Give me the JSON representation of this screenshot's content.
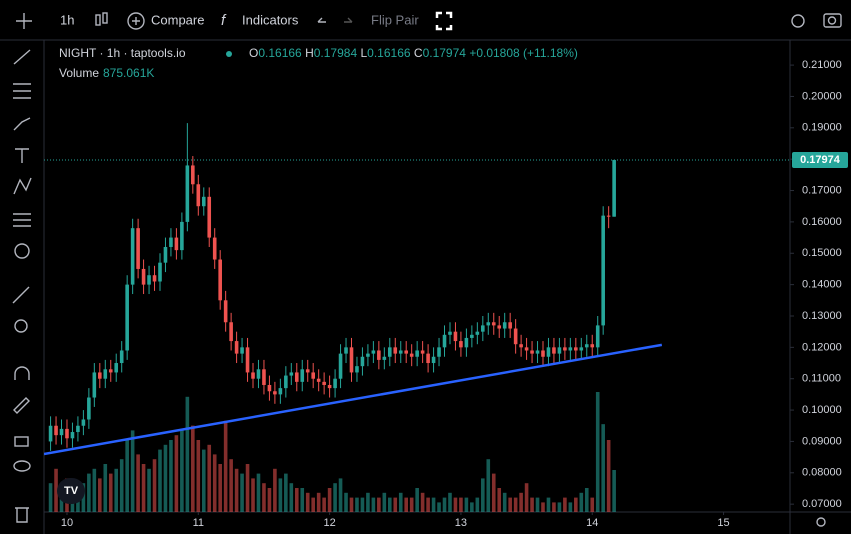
{
  "toolbar": {
    "interval": "1h",
    "compare": "Compare",
    "indicators": "Indicators",
    "flip": "Flip Pair"
  },
  "chart_data": {
    "type": "candlestick",
    "title": "NIGHT · 1h · taptools.io",
    "readout": [
      {
        "label": "O",
        "value": 0.16166
      },
      {
        "label": "H",
        "value": 0.17984
      },
      {
        "label": "L",
        "value": 0.16166
      },
      {
        "label": "C",
        "value": 0.17974
      }
    ],
    "change": {
      "value": 0.01808,
      "label": "+0.01808"
    },
    "change_pct": {
      "value": 11.18,
      "label": "(+11.18%)"
    },
    "volume_title": "Volume",
    "volume_readout": {
      "value": 875.061,
      "label": "875.061K"
    },
    "up_color": "#26a69a",
    "down_color": "#ef5350",
    "x": [
      9.875,
      9.9167,
      9.9583,
      10,
      10.0417,
      10.0833,
      10.125,
      10.1667,
      10.2083,
      10.25,
      10.2917,
      10.3333,
      10.375,
      10.4167,
      10.4583,
      10.5,
      10.5417,
      10.5833,
      10.625,
      10.6667,
      10.7083,
      10.75,
      10.7917,
      10.8333,
      10.875,
      10.9167,
      10.9583,
      11,
      11.0417,
      11.0833,
      11.125,
      11.1667,
      11.2083,
      11.25,
      11.2917,
      11.3333,
      11.375,
      11.4167,
      11.4583,
      11.5,
      11.5417,
      11.5833,
      11.625,
      11.6667,
      11.7083,
      11.75,
      11.7917,
      11.8333,
      11.875,
      11.9167,
      11.9583,
      12,
      12.0417,
      12.0833,
      12.125,
      12.1667,
      12.2083,
      12.25,
      12.2917,
      12.3333,
      12.375,
      12.4167,
      12.4583,
      12.5,
      12.5417,
      12.5833,
      12.625,
      12.6667,
      12.7083,
      12.75,
      12.7917,
      12.8333,
      12.875,
      12.9167,
      12.9583,
      13,
      13.0417,
      13.0833,
      13.125,
      13.1667,
      13.2083,
      13.25,
      13.2917,
      13.3333,
      13.375,
      13.4167,
      13.4583,
      13.5,
      13.5417,
      13.5833,
      13.625,
      13.6667,
      13.7083,
      13.75,
      13.7917,
      13.8333,
      13.875,
      13.9167,
      13.9583,
      14,
      14.0417,
      14.0833,
      14.125,
      14.1667
    ],
    "open": [
      0.09,
      0.095,
      0.092,
      0.094,
      0.091,
      0.093,
      0.095,
      0.097,
      0.104,
      0.112,
      0.11,
      0.113,
      0.112,
      0.115,
      0.119,
      0.14,
      0.158,
      0.145,
      0.14,
      0.143,
      0.141,
      0.147,
      0.152,
      0.155,
      0.151,
      0.16,
      0.178,
      0.172,
      0.165,
      0.168,
      0.155,
      0.148,
      0.135,
      0.128,
      0.122,
      0.118,
      0.12,
      0.112,
      0.11,
      0.113,
      0.108,
      0.106,
      0.105,
      0.107,
      0.111,
      0.112,
      0.109,
      0.113,
      0.112,
      0.11,
      0.109,
      0.108,
      0.107,
      0.11,
      0.118,
      0.12,
      0.112,
      0.114,
      0.117,
      0.118,
      0.119,
      0.116,
      0.117,
      0.12,
      0.118,
      0.119,
      0.118,
      0.117,
      0.119,
      0.118,
      0.115,
      0.117,
      0.12,
      0.124,
      0.125,
      0.122,
      0.12,
      0.123,
      0.124,
      0.125,
      0.127,
      0.128,
      0.127,
      0.126,
      0.128,
      0.126,
      0.121,
      0.12,
      0.119,
      0.118,
      0.119,
      0.117,
      0.12,
      0.118,
      0.12,
      0.119,
      0.12,
      0.119,
      0.12,
      0.121,
      0.12,
      0.127,
      0.162,
      0.16166
    ],
    "high": [
      0.098,
      0.098,
      0.097,
      0.097,
      0.096,
      0.098,
      0.1,
      0.107,
      0.115,
      0.115,
      0.116,
      0.116,
      0.118,
      0.122,
      0.143,
      0.161,
      0.161,
      0.148,
      0.146,
      0.146,
      0.15,
      0.155,
      0.158,
      0.158,
      0.163,
      0.1915,
      0.181,
      0.175,
      0.171,
      0.171,
      0.158,
      0.151,
      0.138,
      0.131,
      0.125,
      0.123,
      0.123,
      0.115,
      0.116,
      0.116,
      0.111,
      0.109,
      0.11,
      0.114,
      0.115,
      0.115,
      0.116,
      0.116,
      0.115,
      0.113,
      0.112,
      0.111,
      0.113,
      0.121,
      0.123,
      0.123,
      0.117,
      0.12,
      0.121,
      0.122,
      0.122,
      0.12,
      0.123,
      0.123,
      0.122,
      0.122,
      0.121,
      0.122,
      0.122,
      0.121,
      0.12,
      0.123,
      0.127,
      0.128,
      0.128,
      0.125,
      0.126,
      0.127,
      0.128,
      0.13,
      0.131,
      0.131,
      0.13,
      0.131,
      0.131,
      0.129,
      0.124,
      0.123,
      0.122,
      0.122,
      0.122,
      0.123,
      0.123,
      0.123,
      0.123,
      0.123,
      0.123,
      0.123,
      0.124,
      0.124,
      0.13,
      0.165,
      0.165,
      0.17984
    ],
    "low": [
      0.087,
      0.089,
      0.089,
      0.088,
      0.088,
      0.09,
      0.092,
      0.094,
      0.101,
      0.107,
      0.107,
      0.109,
      0.109,
      0.112,
      0.116,
      0.137,
      0.142,
      0.137,
      0.137,
      0.138,
      0.138,
      0.144,
      0.149,
      0.148,
      0.148,
      0.157,
      0.169,
      0.162,
      0.162,
      0.152,
      0.145,
      0.132,
      0.125,
      0.119,
      0.115,
      0.115,
      0.109,
      0.107,
      0.107,
      0.105,
      0.103,
      0.102,
      0.102,
      0.104,
      0.108,
      0.106,
      0.106,
      0.109,
      0.107,
      0.106,
      0.105,
      0.104,
      0.104,
      0.107,
      0.115,
      0.109,
      0.109,
      0.111,
      0.114,
      0.115,
      0.113,
      0.113,
      0.114,
      0.115,
      0.115,
      0.115,
      0.114,
      0.114,
      0.115,
      0.112,
      0.112,
      0.114,
      0.117,
      0.121,
      0.119,
      0.117,
      0.117,
      0.12,
      0.121,
      0.122,
      0.124,
      0.124,
      0.123,
      0.123,
      0.123,
      0.118,
      0.117,
      0.116,
      0.115,
      0.115,
      0.114,
      0.114,
      0.115,
      0.115,
      0.116,
      0.116,
      0.116,
      0.116,
      0.117,
      0.117,
      0.117,
      0.124,
      0.158,
      0.16166
    ],
    "close": [
      0.095,
      0.092,
      0.094,
      0.091,
      0.093,
      0.095,
      0.097,
      0.104,
      0.112,
      0.11,
      0.113,
      0.112,
      0.115,
      0.119,
      0.14,
      0.158,
      0.145,
      0.14,
      0.143,
      0.141,
      0.147,
      0.152,
      0.155,
      0.151,
      0.16,
      0.178,
      0.172,
      0.165,
      0.168,
      0.155,
      0.148,
      0.135,
      0.128,
      0.122,
      0.118,
      0.12,
      0.112,
      0.11,
      0.113,
      0.108,
      0.106,
      0.105,
      0.107,
      0.111,
      0.112,
      0.109,
      0.113,
      0.112,
      0.11,
      0.109,
      0.108,
      0.107,
      0.11,
      0.118,
      0.12,
      0.112,
      0.114,
      0.117,
      0.118,
      0.119,
      0.116,
      0.117,
      0.12,
      0.118,
      0.119,
      0.118,
      0.117,
      0.119,
      0.118,
      0.115,
      0.117,
      0.12,
      0.124,
      0.125,
      0.122,
      0.12,
      0.123,
      0.124,
      0.125,
      0.127,
      0.128,
      0.127,
      0.126,
      0.128,
      0.126,
      0.121,
      0.12,
      0.119,
      0.118,
      0.119,
      0.117,
      0.12,
      0.118,
      0.12,
      0.119,
      0.12,
      0.119,
      0.12,
      0.121,
      0.12,
      0.127,
      0.162,
      0.16166,
      0.17974
    ],
    "volume": [
      600,
      900,
      500,
      700,
      400,
      500,
      600,
      800,
      900,
      700,
      1000,
      800,
      900,
      1100,
      1500,
      1700,
      1200,
      1000,
      900,
      1100,
      1300,
      1400,
      1500,
      1600,
      1700,
      2400,
      1800,
      1500,
      1300,
      1400,
      1200,
      1000,
      1900,
      1100,
      900,
      800,
      1000,
      700,
      800,
      600,
      500,
      900,
      700,
      800,
      600,
      500,
      500,
      400,
      300,
      400,
      300,
      500,
      600,
      700,
      400,
      300,
      300,
      300,
      400,
      300,
      300,
      400,
      300,
      300,
      400,
      300,
      300,
      500,
      400,
      300,
      300,
      200,
      300,
      400,
      300,
      300,
      300,
      200,
      300,
      700,
      1100,
      800,
      500,
      400,
      300,
      300,
      400,
      600,
      300,
      300,
      200,
      300,
      200,
      200,
      300,
      200,
      300,
      400,
      500,
      300,
      2500,
      1830,
      1500,
      875.061
    ],
    "trendline": {
      "x": [
        9.825,
        14.53
      ],
      "y": [
        0.086,
        0.1208
      ],
      "color": "#2962ff"
    },
    "xlim": [
      9.825,
      15.506
    ],
    "xticks": [
      10,
      11,
      12,
      13,
      14,
      15
    ],
    "ylim": [
      0.0675,
      0.218
    ],
    "yticks": [
      {
        "value": 0.07,
        "label": "0.07000"
      },
      {
        "value": 0.08,
        "label": "0.08000"
      },
      {
        "value": 0.09,
        "label": "0.09000"
      },
      {
        "value": 0.1,
        "label": "0.10000"
      },
      {
        "value": 0.11,
        "label": "0.11000"
      },
      {
        "value": 0.12,
        "label": "0.12000"
      },
      {
        "value": 0.13,
        "label": "0.13000"
      },
      {
        "value": 0.14,
        "label": "0.14000"
      },
      {
        "value": 0.15,
        "label": "0.15000"
      },
      {
        "value": 0.16,
        "label": "0.16000"
      },
      {
        "value": 0.17,
        "label": "0.17000"
      },
      {
        "value": 0.18,
        "label": "0.18000"
      },
      {
        "value": 0.19,
        "label": "0.19000"
      },
      {
        "value": 0.2,
        "label": "0.20000"
      },
      {
        "value": 0.21,
        "label": "0.21000"
      }
    ],
    "grid": false
  }
}
